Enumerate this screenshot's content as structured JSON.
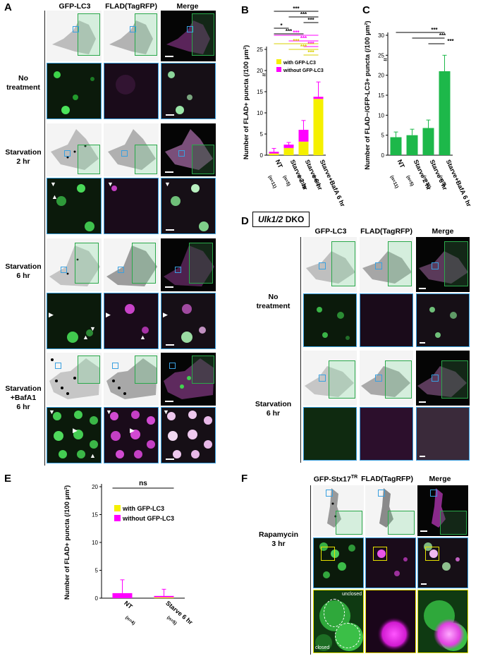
{
  "panel_labels": {
    "a": "A",
    "b": "B",
    "c": "C",
    "d": "D",
    "e": "E",
    "f": "F"
  },
  "panel_a": {
    "columns": [
      "GFP-LC3",
      "FLAD(TagRFP)",
      "Merge"
    ],
    "rows": [
      {
        "label_line1": "No",
        "label_line2": "treatment"
      },
      {
        "label_line1": "Starvation",
        "label_line2": "2 hr"
      },
      {
        "label_line1": "Starvation",
        "label_line2": "6 hr"
      },
      {
        "label_line1": "Starvation",
        "label_line2": "+BafA1",
        "label_line3": "6 hr"
      }
    ]
  },
  "panel_d": {
    "header": "Ulk1/2 DKO",
    "columns": [
      "GFP-LC3",
      "FLAD(TagRFP)",
      "Merge"
    ],
    "rows": [
      {
        "label_line1": "No",
        "label_line2": "treatment"
      },
      {
        "label_line1": "Starvation",
        "label_line2": "6 hr"
      }
    ]
  },
  "panel_f": {
    "columns": [
      "GFP-Stx17TR",
      "FLAD(TagRFP)",
      "Merge"
    ],
    "row": {
      "label_line1": "Rapamycin",
      "label_line2": "3 hr"
    },
    "unclosed": "unclosed",
    "closed": "closed"
  },
  "colors": {
    "yellow": "#f5f000",
    "magenta": "#ff00ff",
    "green": "#1db84a",
    "sig_black": "#000000"
  },
  "chart_data": [
    {
      "panel": "B",
      "type": "bar",
      "stacked": true,
      "ylabel": "Number of FLAD+ puncta (/100 μm²)",
      "categories": [
        "NT",
        "Starve 2 hr",
        "Starve 6 hr",
        "Starve+BafA 6 hr"
      ],
      "n_labels": [
        "(n=11)",
        "(n=5)",
        "(n=12)",
        "(n=5)"
      ],
      "series": [
        {
          "name": "with GFP-LC3",
          "values": [
            0.4,
            1.7,
            3.2,
            13.3
          ]
        },
        {
          "name": "without GFP-LC3",
          "values": [
            0.4,
            0.8,
            2.8,
            0.5
          ]
        }
      ],
      "errors": [
        0.8,
        0.5,
        2.2,
        3.5
      ],
      "ylim": [
        0,
        25
      ],
      "axis_break": true,
      "yticks": [
        0,
        5,
        10,
        15,
        20,
        25
      ],
      "significance": {
        "black": [
          "***",
          "***",
          "***",
          "*",
          "***"
        ],
        "magenta": [
          "***",
          "***",
          "***"
        ],
        "yellow": [
          "***",
          "***",
          "***"
        ]
      }
    },
    {
      "panel": "C",
      "type": "bar",
      "ylabel": "Number of FLAD−/GFP-LC3+ puncta (/100 μm²)",
      "categories": [
        "NT",
        "Starve 2 hr",
        "Starve 6 hr",
        "Starve+BafA 6 hr"
      ],
      "n_labels": [
        "(n=11)",
        "(n=5)",
        "(n=12)",
        "(n=5)"
      ],
      "series": [
        {
          "values": [
            4.5,
            5.0,
            6.8,
            21.0
          ]
        }
      ],
      "errors": [
        1.3,
        1.5,
        2.0,
        4.0
      ],
      "ylim": [
        0,
        30
      ],
      "axis_break": true,
      "yticks": [
        0,
        5,
        10,
        15,
        20,
        25,
        30
      ],
      "significance": [
        "***",
        "***",
        "***"
      ]
    },
    {
      "panel": "E",
      "type": "bar",
      "stacked": true,
      "ylabel": "Number of FLAD+ puncta (/100 μm²)",
      "categories": [
        "NT",
        "Starve 6 hr"
      ],
      "n_labels": [
        "(n=4)",
        "(n=5)"
      ],
      "series": [
        {
          "name": "with GFP-LC3",
          "values": [
            0.0,
            0.15
          ]
        },
        {
          "name": "without GFP-LC3",
          "values": [
            0.9,
            0.25
          ]
        }
      ],
      "errors": [
        2.4,
        1.2
      ],
      "ylim": [
        0,
        20
      ],
      "yticks": [
        0,
        5,
        10,
        15,
        20
      ],
      "significance": [
        "ns"
      ]
    }
  ]
}
